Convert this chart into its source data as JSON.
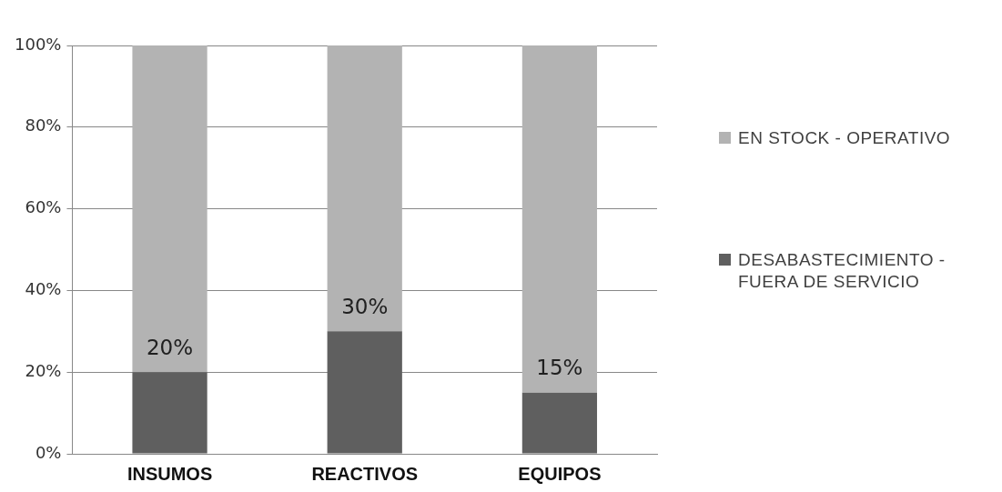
{
  "chart_data": {
    "type": "bar",
    "stacked": true,
    "categories": [
      "INSUMOS",
      "REACTIVOS",
      "EQUIPOS"
    ],
    "series": [
      {
        "name": "DESABASTECIMIENTO - FUERA DE SERVICIO",
        "color": "#5f5f5f",
        "values": [
          20,
          30,
          15
        ],
        "value_labels": [
          "20%",
          "30%",
          "15%"
        ]
      },
      {
        "name": "EN STOCK - OPERATIVO",
        "color": "#b3b3b3",
        "values": [
          80,
          70,
          85
        ]
      }
    ],
    "ylim": [
      0,
      100
    ],
    "yticks": [
      {
        "value": 0,
        "label": "0%"
      },
      {
        "value": 20,
        "label": "20%"
      },
      {
        "value": 40,
        "label": "40%"
      },
      {
        "value": 60,
        "label": "60%"
      },
      {
        "value": 80,
        "label": "80%"
      },
      {
        "value": 100,
        "label": "100%"
      }
    ],
    "grid": "y",
    "legend": "right"
  }
}
